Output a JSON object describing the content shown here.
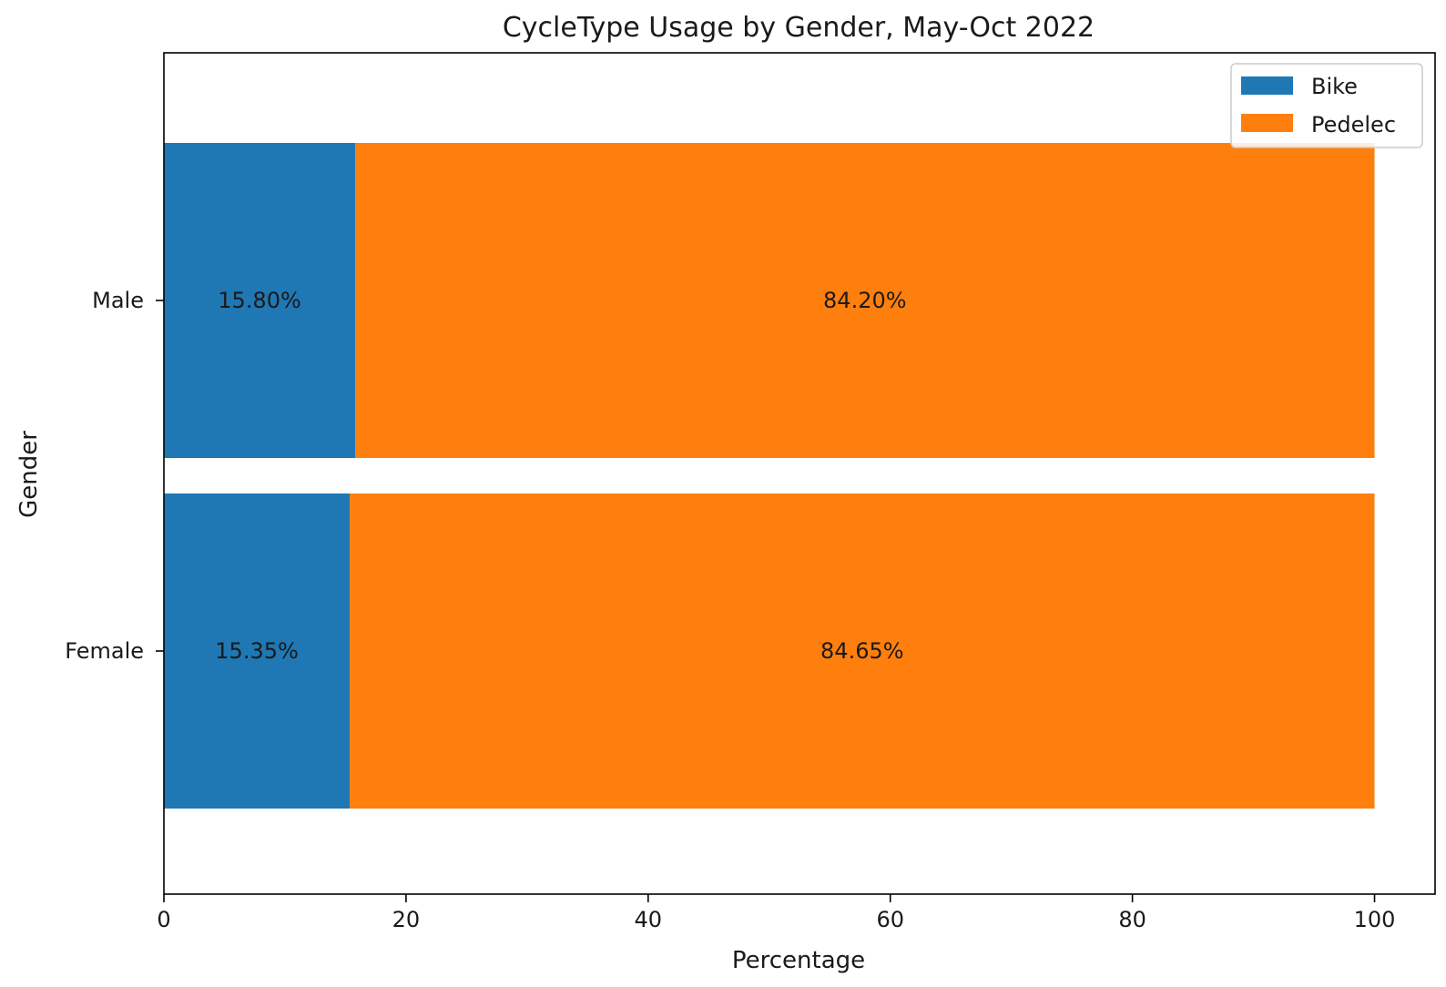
{
  "chart_data": {
    "type": "bar",
    "orientation": "horizontal",
    "stacked": true,
    "title": "CycleType Usage by Gender, May-Oct 2022",
    "xlabel": "Percentage",
    "ylabel": "Gender",
    "categories": [
      "Female",
      "Male"
    ],
    "xlim": [
      0,
      105
    ],
    "xticks": [
      0,
      20,
      40,
      60,
      80,
      100
    ],
    "grid": false,
    "legend_position": "top-right",
    "series": [
      {
        "name": "Bike",
        "color": "#1f77b4",
        "values": [
          15.35,
          15.8
        ],
        "labels": [
          "15.35%",
          "15.80%"
        ]
      },
      {
        "name": "Pedelec",
        "color": "#ff7f0e",
        "values": [
          84.65,
          84.2
        ],
        "labels": [
          "84.65%",
          "84.20%"
        ]
      }
    ]
  }
}
